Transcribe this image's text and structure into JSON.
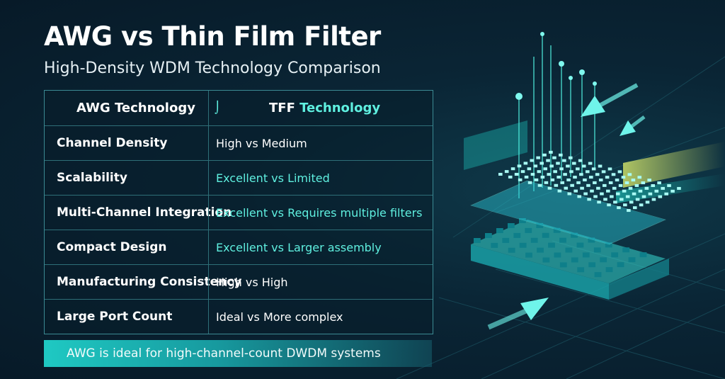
{
  "header": {
    "title": "AWG vs Thin Film Filter",
    "subtitle": "High-Density WDM Technology Comparison"
  },
  "table": {
    "columns": {
      "left": "AWG Technology",
      "right_lead": "TFF",
      "right_rest": "Technology"
    },
    "rows": [
      {
        "label": "Channel Density",
        "value": "High vs Medium",
        "accent": false
      },
      {
        "label": "Scalability",
        "value": "Excellent vs Limited",
        "accent": true
      },
      {
        "label": "Multi-Channel Integration",
        "value": "Excellent vs Requires multiple filters",
        "accent": true
      },
      {
        "label": "Compact Design",
        "value": "Excellent vs Larger assembly",
        "accent": true
      },
      {
        "label": "Manufacturing Consistency",
        "value": "High vs High",
        "accent": false
      },
      {
        "label": "Large Port Count",
        "value": "Ideal vs More complex",
        "accent": false
      }
    ]
  },
  "footer": {
    "banner": "AWG is ideal for high-channel-count DWDM systems"
  }
}
